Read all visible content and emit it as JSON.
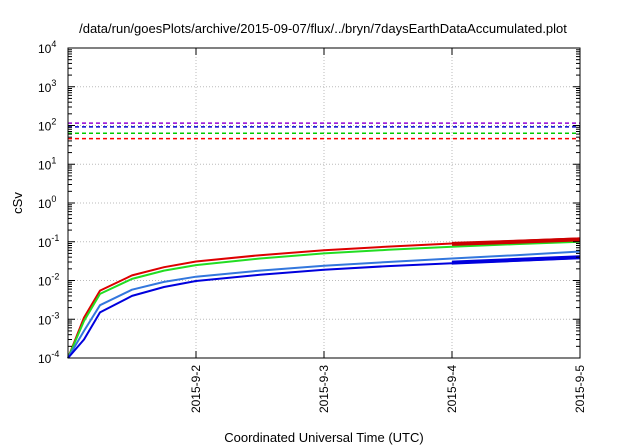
{
  "chart_data": {
    "type": "line",
    "title": "/data/run/goesPlots/archive/2015-09-07/flux/../bryn/7daysEarthDataAccumulated.plot",
    "xlabel": "Coordinated Universal Time (UTC)",
    "ylabel": "cSv",
    "yscale": "log",
    "ylim": [
      0.0001,
      10000
    ],
    "xlim": [
      "2015-09-01",
      "2015-09-05"
    ],
    "grid": true,
    "legend": "none",
    "y_ticks": [
      {
        "base": "10",
        "exp": "-4"
      },
      {
        "base": "10",
        "exp": "-3"
      },
      {
        "base": "10",
        "exp": "-2"
      },
      {
        "base": "10",
        "exp": "-1"
      },
      {
        "base": "10",
        "exp": "0"
      },
      {
        "base": "10",
        "exp": "1"
      },
      {
        "base": "10",
        "exp": "2"
      },
      {
        "base": "10",
        "exp": "3"
      },
      {
        "base": "10",
        "exp": "4"
      }
    ],
    "x_ticks": [
      "2015-9-2",
      "2015-9-3",
      "2015-9-4",
      "2015-9-5"
    ],
    "x_tick_dates": [
      "2015-09-02",
      "2015-09-03",
      "2015-09-04",
      "2015-09-05"
    ],
    "thresholds": [
      {
        "color": "#9400d3",
        "value": 115
      },
      {
        "color": "#0000cd",
        "value": 92
      },
      {
        "color": "#00cc00",
        "value": 63
      },
      {
        "color": "#ff0000",
        "value": 46
      }
    ],
    "series": [
      {
        "color": "#dd0000",
        "x": [
          "2015-09-01 00:00",
          "2015-09-01 03:00",
          "2015-09-01 06:00",
          "2015-09-01 12:00",
          "2015-09-01 18:00",
          "2015-09-02 00:00",
          "2015-09-02 12:00",
          "2015-09-03 00:00",
          "2015-09-03 12:00",
          "2015-09-04 00:00",
          "2015-09-04 12:00",
          "2015-09-05 00:00"
        ],
        "y": [
          0.0001,
          0.0011,
          0.0055,
          0.0135,
          0.022,
          0.031,
          0.045,
          0.06,
          0.075,
          0.09,
          0.105,
          0.122
        ]
      },
      {
        "color": "#22dd22",
        "x": [
          "2015-09-01 00:00",
          "2015-09-01 03:00",
          "2015-09-01 06:00",
          "2015-09-01 12:00",
          "2015-09-01 18:00",
          "2015-09-02 00:00",
          "2015-09-02 12:00",
          "2015-09-03 00:00",
          "2015-09-03 12:00",
          "2015-09-04 00:00",
          "2015-09-04 12:00",
          "2015-09-05 00:00"
        ],
        "y": [
          0.0001,
          0.0009,
          0.0045,
          0.011,
          0.018,
          0.025,
          0.037,
          0.05,
          0.062,
          0.074,
          0.087,
          0.1
        ]
      },
      {
        "color": "#3377dd",
        "x": [
          "2015-09-01 00:00",
          "2015-09-01 03:00",
          "2015-09-01 06:00",
          "2015-09-01 12:00",
          "2015-09-01 18:00",
          "2015-09-02 00:00",
          "2015-09-02 12:00",
          "2015-09-03 00:00",
          "2015-09-03 12:00",
          "2015-09-04 00:00",
          "2015-09-04 12:00",
          "2015-09-05 00:00"
        ],
        "y": [
          0.0001,
          0.0005,
          0.0023,
          0.0058,
          0.0092,
          0.0125,
          0.018,
          0.024,
          0.03,
          0.037,
          0.045,
          0.056
        ]
      },
      {
        "color": "#0000dd",
        "x": [
          "2015-09-01 00:00",
          "2015-09-01 03:00",
          "2015-09-01 06:00",
          "2015-09-01 12:00",
          "2015-09-01 18:00",
          "2015-09-02 00:00",
          "2015-09-02 12:00",
          "2015-09-03 00:00",
          "2015-09-03 12:00",
          "2015-09-04 00:00",
          "2015-09-04 12:00",
          "2015-09-05 00:00"
        ],
        "y": [
          0.0001,
          0.0003,
          0.0015,
          0.004,
          0.0068,
          0.0097,
          0.014,
          0.019,
          0.0235,
          0.028,
          0.0325,
          0.038
        ]
      },
      {
        "color": "#0000dd",
        "x": [
          "2015-09-04 00:00",
          "2015-09-04 12:00",
          "2015-09-05 00:00"
        ],
        "y": [
          0.029,
          0.034,
          0.04
        ]
      },
      {
        "color": "#cc0000",
        "x": [
          "2015-09-04 00:00",
          "2015-09-04 12:00",
          "2015-09-05 00:00"
        ],
        "y": [
          0.088,
          0.1,
          0.115
        ]
      }
    ]
  }
}
